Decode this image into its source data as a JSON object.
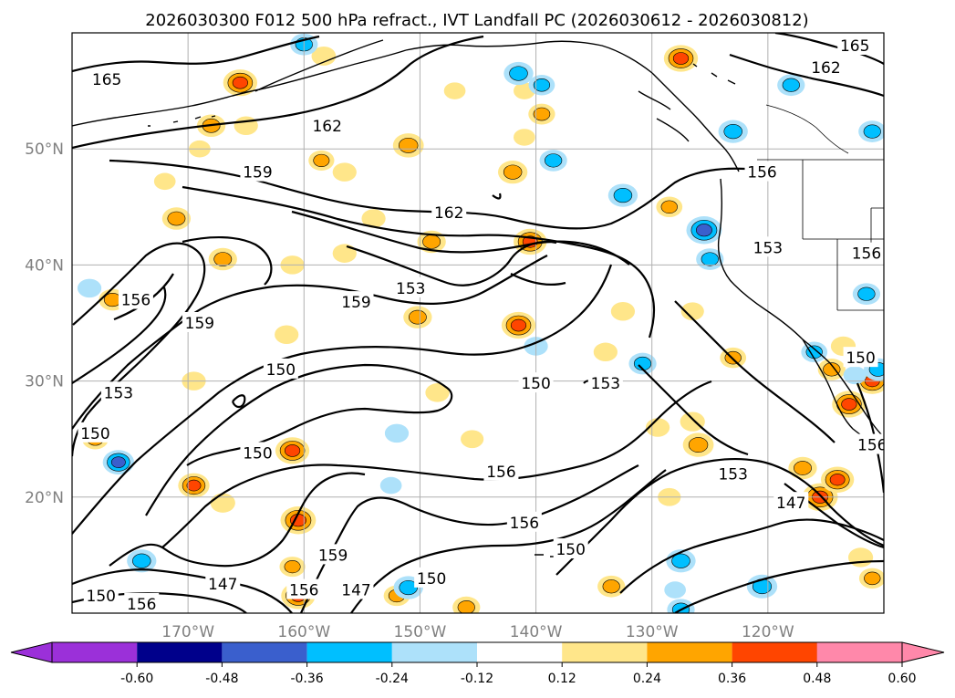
{
  "title": "2026030300 F012 500 hPa refract., IVT Landfall PC (2026030612 - 2026030812)",
  "map": {
    "lon_range": [
      -180,
      -110
    ],
    "lat_range": [
      10,
      60
    ],
    "x_ticks": [
      {
        "lon": -170,
        "label": "170°W"
      },
      {
        "lon": -160,
        "label": "160°W"
      },
      {
        "lon": -150,
        "label": "150°W"
      },
      {
        "lon": -140,
        "label": "140°W"
      },
      {
        "lon": -130,
        "label": "130°W"
      },
      {
        "lon": -120,
        "label": "120°W"
      }
    ],
    "y_ticks": [
      {
        "lat": 50,
        "label": "50°N"
      },
      {
        "lat": 40,
        "label": "40°N"
      },
      {
        "lat": 30,
        "label": "30°N"
      },
      {
        "lat": 20,
        "label": "20°N"
      }
    ],
    "grid": true
  },
  "contour_labels": [
    {
      "text": "165",
      "lon": -177.0,
      "lat": 56.0
    },
    {
      "text": "162",
      "lon": -158.0,
      "lat": 52.0
    },
    {
      "text": "165",
      "lon": -112.5,
      "lat": 58.9
    },
    {
      "text": "162",
      "lon": -115.0,
      "lat": 57.0
    },
    {
      "text": "159",
      "lon": -164.0,
      "lat": 48.0
    },
    {
      "text": "162",
      "lon": -147.5,
      "lat": 44.5
    },
    {
      "text": "156",
      "lon": -120.5,
      "lat": 48.0
    },
    {
      "text": "153",
      "lon": -120.0,
      "lat": 41.5
    },
    {
      "text": "156",
      "lon": -111.5,
      "lat": 41.0
    },
    {
      "text": "153",
      "lon": -150.8,
      "lat": 38.0
    },
    {
      "text": "159",
      "lon": -155.5,
      "lat": 36.8
    },
    {
      "text": "156",
      "lon": -174.5,
      "lat": 37.0
    },
    {
      "text": "159",
      "lon": -169.0,
      "lat": 35.0
    },
    {
      "text": "150",
      "lon": -162.0,
      "lat": 31.0
    },
    {
      "text": "153",
      "lon": -176.0,
      "lat": 29.0
    },
    {
      "text": "150",
      "lon": -178.0,
      "lat": 25.5
    },
    {
      "text": "150",
      "lon": -140.0,
      "lat": 29.8
    },
    {
      "text": "153",
      "lon": -134.0,
      "lat": 29.8
    },
    {
      "text": "150",
      "lon": -112.0,
      "lat": 32.0
    },
    {
      "text": "150",
      "lon": -164.0,
      "lat": 23.8
    },
    {
      "text": "156",
      "lon": -143.0,
      "lat": 22.2
    },
    {
      "text": "153",
      "lon": -123.0,
      "lat": 22.0
    },
    {
      "text": "147",
      "lon": -118.0,
      "lat": 19.5
    },
    {
      "text": "156",
      "lon": -111.0,
      "lat": 24.5
    },
    {
      "text": "156",
      "lon": -141.0,
      "lat": 17.8
    },
    {
      "text": "150",
      "lon": -137.0,
      "lat": 15.5
    },
    {
      "text": "159",
      "lon": -157.5,
      "lat": 15.0
    },
    {
      "text": "147",
      "lon": -167.0,
      "lat": 12.5
    },
    {
      "text": "156",
      "lon": -160.0,
      "lat": 12.0
    },
    {
      "text": "147",
      "lon": -155.5,
      "lat": 12.0
    },
    {
      "text": "150",
      "lon": -149.0,
      "lat": 13.0
    },
    {
      "text": "150",
      "lon": -177.5,
      "lat": 11.5
    },
    {
      "text": "156",
      "lon": -174.0,
      "lat": 10.8
    }
  ],
  "pc_blobs": [
    {
      "lon": -165.5,
      "lat": 55.7,
      "value": 0.42
    },
    {
      "lon": -158.3,
      "lat": 58.0,
      "value": 0.21
    },
    {
      "lon": -168.0,
      "lat": 52.0,
      "value": 0.3
    },
    {
      "lon": -165.0,
      "lat": 52.0,
      "value": 0.2
    },
    {
      "lon": -169.0,
      "lat": 50.0,
      "value": 0.15
    },
    {
      "lon": -151.0,
      "lat": 50.3,
      "value": 0.35
    },
    {
      "lon": -147.0,
      "lat": 55.0,
      "value": 0.15
    },
    {
      "lon": -141.0,
      "lat": 55.0,
      "value": 0.15
    },
    {
      "lon": -139.5,
      "lat": 53.0,
      "value": 0.26
    },
    {
      "lon": -141.0,
      "lat": 51.0,
      "value": 0.15
    },
    {
      "lon": -127.5,
      "lat": 57.8,
      "value": 0.42
    },
    {
      "lon": -158.5,
      "lat": 49.0,
      "value": 0.24
    },
    {
      "lon": -156.5,
      "lat": 48.0,
      "value": 0.2
    },
    {
      "lon": -142.0,
      "lat": 48.0,
      "value": 0.32
    },
    {
      "lon": -172.0,
      "lat": 47.2,
      "value": 0.15
    },
    {
      "lon": -171.0,
      "lat": 44.0,
      "value": 0.3
    },
    {
      "lon": -154.0,
      "lat": 44.0,
      "value": 0.2
    },
    {
      "lon": -149.0,
      "lat": 42.0,
      "value": 0.3
    },
    {
      "lon": -140.5,
      "lat": 42.0,
      "value": 0.4
    },
    {
      "lon": -167.0,
      "lat": 40.5,
      "value": 0.3
    },
    {
      "lon": -161.0,
      "lat": 40.0,
      "value": 0.2
    },
    {
      "lon": -156.5,
      "lat": 41.0,
      "value": 0.2
    },
    {
      "lon": -176.5,
      "lat": 37.0,
      "value": 0.28
    },
    {
      "lon": -150.2,
      "lat": 35.5,
      "value": 0.3
    },
    {
      "lon": -141.5,
      "lat": 34.8,
      "value": 0.42
    },
    {
      "lon": -169.5,
      "lat": 30.0,
      "value": 0.2
    },
    {
      "lon": -161.5,
      "lat": 34.0,
      "value": 0.2
    },
    {
      "lon": -148.5,
      "lat": 29.0,
      "value": 0.2
    },
    {
      "lon": -178.0,
      "lat": 25.0,
      "value": 0.25
    },
    {
      "lon": -161.0,
      "lat": 24.0,
      "value": 0.42
    },
    {
      "lon": -145.5,
      "lat": 25.0,
      "value": 0.18
    },
    {
      "lon": -169.5,
      "lat": 21.0,
      "value": 0.36
    },
    {
      "lon": -167.0,
      "lat": 19.5,
      "value": 0.22
    },
    {
      "lon": -160.5,
      "lat": 18.0,
      "value": 0.45
    },
    {
      "lon": -161.0,
      "lat": 14.0,
      "value": 0.24
    },
    {
      "lon": -160.5,
      "lat": 11.5,
      "value": 0.42
    },
    {
      "lon": -152.0,
      "lat": 11.5,
      "value": 0.25
    },
    {
      "lon": -146.0,
      "lat": 10.5,
      "value": 0.28
    },
    {
      "lon": -129.5,
      "lat": 26.0,
      "value": 0.2
    },
    {
      "lon": -126.0,
      "lat": 24.5,
      "value": 0.35
    },
    {
      "lon": -132.5,
      "lat": 36.0,
      "value": 0.2
    },
    {
      "lon": -126.5,
      "lat": 36.0,
      "value": 0.18
    },
    {
      "lon": -123.0,
      "lat": 32.0,
      "value": 0.25
    },
    {
      "lon": -128.5,
      "lat": 20.0,
      "value": 0.18
    },
    {
      "lon": -134.0,
      "lat": 32.5,
      "value": 0.2
    },
    {
      "lon": -115.5,
      "lat": 20.0,
      "value": 0.45
    },
    {
      "lon": -114.0,
      "lat": 21.5,
      "value": 0.4
    },
    {
      "lon": -117.0,
      "lat": 22.5,
      "value": 0.3
    },
    {
      "lon": -113.0,
      "lat": 28.0,
      "value": 0.42
    },
    {
      "lon": -111.0,
      "lat": 30.0,
      "value": 0.4
    },
    {
      "lon": -113.5,
      "lat": 33.0,
      "value": 0.22
    },
    {
      "lon": -114.5,
      "lat": 31.0,
      "value": 0.28
    },
    {
      "lon": -128.5,
      "lat": 45.0,
      "value": 0.25
    },
    {
      "lon": -126.5,
      "lat": 26.5,
      "value": 0.22
    },
    {
      "lon": -133.5,
      "lat": 12.3,
      "value": 0.28
    },
    {
      "lon": -112.0,
      "lat": 14.8,
      "value": 0.22
    },
    {
      "lon": -111.0,
      "lat": 13.0,
      "value": 0.25
    },
    {
      "lon": -125.5,
      "lat": 43.0,
      "value": -0.45
    },
    {
      "lon": -125.0,
      "lat": 40.5,
      "value": -0.28
    },
    {
      "lon": -141.5,
      "lat": 56.5,
      "value": -0.32
    },
    {
      "lon": -139.5,
      "lat": 55.5,
      "value": -0.25
    },
    {
      "lon": -160.0,
      "lat": 59.0,
      "value": -0.28
    },
    {
      "lon": -138.5,
      "lat": 49.0,
      "value": -0.28
    },
    {
      "lon": -132.5,
      "lat": 46.0,
      "value": -0.32
    },
    {
      "lon": -123.0,
      "lat": 51.5,
      "value": -0.32
    },
    {
      "lon": -118.0,
      "lat": 55.5,
      "value": -0.28
    },
    {
      "lon": -111.0,
      "lat": 51.5,
      "value": -0.28
    },
    {
      "lon": -111.5,
      "lat": 37.5,
      "value": -0.28
    },
    {
      "lon": -110.5,
      "lat": 31.0,
      "value": -0.3
    },
    {
      "lon": -112.5,
      "lat": 30.5,
      "value": -0.18
    },
    {
      "lon": -130.8,
      "lat": 31.5,
      "value": -0.28
    },
    {
      "lon": -140.0,
      "lat": 33.0,
      "value": -0.2
    },
    {
      "lon": -134.5,
      "lat": 30.0,
      "value": -0.15
    },
    {
      "lon": -152.0,
      "lat": 25.5,
      "value": -0.2
    },
    {
      "lon": -178.5,
      "lat": 38.0,
      "value": -0.2
    },
    {
      "lon": -176.0,
      "lat": 23.0,
      "value": -0.36
    },
    {
      "lon": -174.0,
      "lat": 14.5,
      "value": -0.32
    },
    {
      "lon": -127.5,
      "lat": 14.5,
      "value": -0.32
    },
    {
      "lon": -120.5,
      "lat": 12.3,
      "value": -0.34
    },
    {
      "lon": -151.0,
      "lat": 12.2,
      "value": -0.32
    },
    {
      "lon": -127.5,
      "lat": 10.3,
      "value": -0.28
    },
    {
      "lon": -128.0,
      "lat": 12.0,
      "value": -0.15
    },
    {
      "lon": -152.5,
      "lat": 21.0,
      "value": -0.15
    },
    {
      "lon": -116.0,
      "lat": 32.5,
      "value": -0.25
    }
  ],
  "colorbar": {
    "ticks": [
      "-0.60",
      "-0.48",
      "-0.36",
      "-0.24",
      "-0.12",
      "0.12",
      "0.24",
      "0.36",
      "0.48",
      "0.60"
    ],
    "colors": [
      "#9b30d9",
      "#00008b",
      "#3a5fcd",
      "#00bfff",
      "#ade1fa",
      "#ffffff",
      "#ffe68a",
      "#ffa500",
      "#ff4500",
      "#b22222",
      "#ff88aa"
    ]
  }
}
